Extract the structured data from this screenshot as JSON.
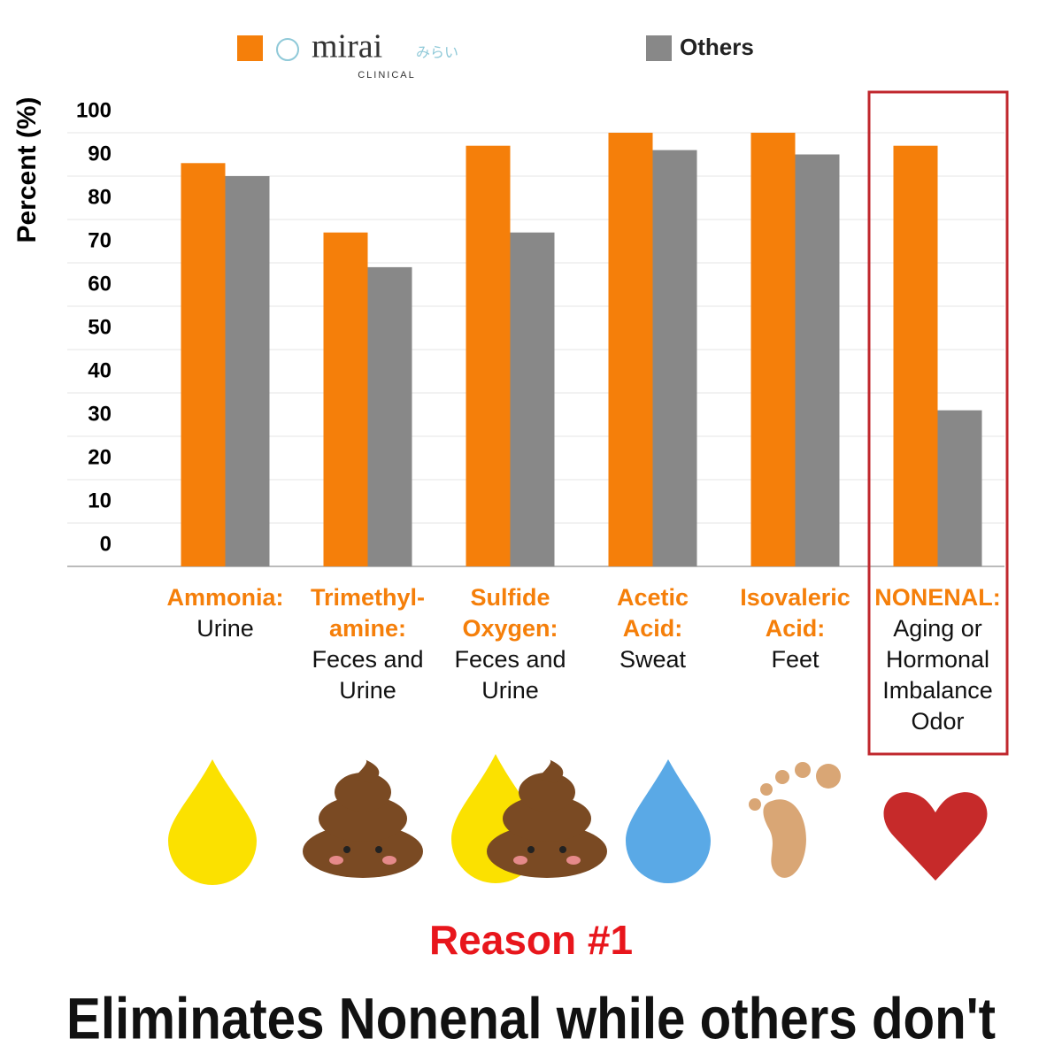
{
  "chart_data": {
    "type": "bar",
    "y_axis_label": "Percent (%)",
    "legend_logo": {
      "kana": "みらい",
      "subtitle": "CLINICAL"
    },
    "categories": [
      {
        "name": [
          "Ammonia:"
        ],
        "source": [
          "Urine"
        ]
      },
      {
        "name": [
          "Trimethyl-",
          "amine:"
        ],
        "source": [
          "Feces and",
          "Urine"
        ]
      },
      {
        "name": [
          "Sulfide",
          "Oxygen:"
        ],
        "source": [
          "Feces and",
          "Urine"
        ]
      },
      {
        "name": [
          "Acetic",
          "Acid:"
        ],
        "source": [
          "Sweat"
        ]
      },
      {
        "name": [
          "Isovaleric",
          "Acid:"
        ],
        "source": [
          "Feet"
        ]
      },
      {
        "name": [
          "NONENAL:"
        ],
        "source": [
          "Aging or",
          "Hormonal",
          "Imbalance",
          "Odor"
        ]
      }
    ],
    "series": [
      {
        "name": "mirai",
        "color": "#f57f0a",
        "values": [
          93,
          77,
          97,
          100,
          100,
          97
        ]
      },
      {
        "name": "Others",
        "color": "#888888",
        "values": [
          90,
          69,
          77,
          96,
          95,
          36
        ]
      }
    ],
    "ylim": [
      0,
      100
    ],
    "yticks": [
      0,
      10,
      20,
      30,
      40,
      50,
      60,
      70,
      80,
      90,
      100
    ],
    "grid": true,
    "highlight_category": 5,
    "highlight_color": "#c0272d",
    "reason": "Reason #1",
    "headline": "Eliminates Nonenal while others don't"
  }
}
